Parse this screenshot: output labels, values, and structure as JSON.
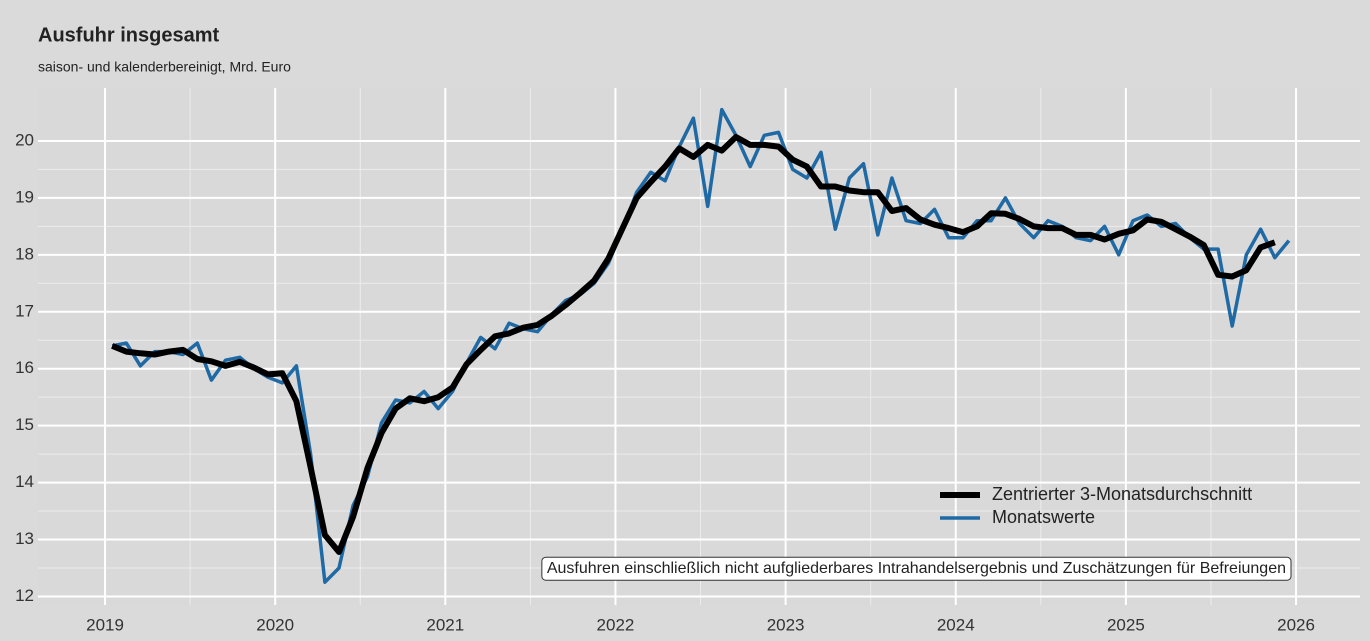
{
  "chart_data": {
    "type": "line",
    "title": "Ausfuhr insgesamt",
    "subtitle": "saison- und kalenderbereinigt, Mrd. Euro",
    "annotation": "Ausfuhren einschließlich nicht aufgliederbares Intrahandelsergebnis und Zuschätzungen für Befreiungen",
    "legend_position": "bottom-right",
    "grid": true,
    "xlim": [
      2018.606,
      2026.376
    ],
    "xticks": [
      2019,
      2020,
      2021,
      2022,
      2023,
      2024,
      2025,
      2026
    ],
    "ylim": [
      11.85,
      20.93
    ],
    "yticks": [
      12,
      13,
      14,
      15,
      16,
      17,
      18,
      19,
      20
    ],
    "x": [
      2019.042,
      2019.125,
      2019.208,
      2019.292,
      2019.375,
      2019.458,
      2019.542,
      2019.625,
      2019.708,
      2019.792,
      2019.875,
      2019.958,
      2020.042,
      2020.125,
      2020.208,
      2020.292,
      2020.375,
      2020.458,
      2020.542,
      2020.625,
      2020.708,
      2020.792,
      2020.875,
      2020.958,
      2021.042,
      2021.125,
      2021.208,
      2021.292,
      2021.375,
      2021.458,
      2021.542,
      2021.625,
      2021.708,
      2021.792,
      2021.875,
      2021.958,
      2022.042,
      2022.125,
      2022.208,
      2022.292,
      2022.375,
      2022.458,
      2022.542,
      2022.625,
      2022.708,
      2022.792,
      2022.875,
      2022.958,
      2023.042,
      2023.125,
      2023.208,
      2023.292,
      2023.375,
      2023.458,
      2023.542,
      2023.625,
      2023.708,
      2023.792,
      2023.875,
      2023.958,
      2024.042,
      2024.125,
      2024.208,
      2024.292,
      2024.375,
      2024.458,
      2024.542,
      2024.625,
      2024.708,
      2024.792,
      2024.875,
      2024.958,
      2025.042,
      2025.125,
      2025.208,
      2025.292,
      2025.375,
      2025.458,
      2025.542,
      2025.625,
      2025.708,
      2025.792,
      2025.875,
      2025.958
    ],
    "series": [
      {
        "name": "Monatswerte",
        "color": "#1f6aa5",
        "width": 3.5,
        "values": [
          16.4,
          16.45,
          16.05,
          16.3,
          16.3,
          16.25,
          16.45,
          15.8,
          16.15,
          16.2,
          16.0,
          15.85,
          15.75,
          16.05,
          14.5,
          12.25,
          12.5,
          13.6,
          14.1,
          15.05,
          15.45,
          15.4,
          15.6,
          15.3,
          15.6,
          16.1,
          16.55,
          16.35,
          16.8,
          16.7,
          16.65,
          16.95,
          17.2,
          17.3,
          17.5,
          17.85,
          18.45,
          19.1,
          19.45,
          19.3,
          19.9,
          20.4,
          18.85,
          20.55,
          20.1,
          19.55,
          20.1,
          20.15,
          19.5,
          19.35,
          19.8,
          18.45,
          19.35,
          19.6,
          18.35,
          19.35,
          18.6,
          18.55,
          18.8,
          18.3,
          18.3,
          18.6,
          18.6,
          19.0,
          18.55,
          18.3,
          18.6,
          18.5,
          18.3,
          18.25,
          18.5,
          18.0,
          18.6,
          18.7,
          18.5,
          18.55,
          18.3,
          18.1,
          18.1,
          16.75,
          18.0,
          18.45,
          17.95,
          18.25
        ]
      },
      {
        "name": "Zentrierter 3-Monatsdurchschnitt",
        "color": "#000000",
        "width": 6,
        "values": [
          16.4,
          16.3,
          16.27,
          16.25,
          16.3,
          16.33,
          16.17,
          16.13,
          16.05,
          16.12,
          16.02,
          15.9,
          15.92,
          15.43,
          14.27,
          13.08,
          12.78,
          13.4,
          14.25,
          14.87,
          15.3,
          15.48,
          15.43,
          15.5,
          15.67,
          16.08,
          16.33,
          16.57,
          16.62,
          16.72,
          16.77,
          16.93,
          17.12,
          17.33,
          17.55,
          17.93,
          18.47,
          19.0,
          19.28,
          19.55,
          19.87,
          19.72,
          19.93,
          19.83,
          20.07,
          19.93,
          19.93,
          19.9,
          19.67,
          19.55,
          19.2,
          19.2,
          19.13,
          19.1,
          19.1,
          18.77,
          18.82,
          18.62,
          18.53,
          18.47,
          18.4,
          18.5,
          18.73,
          18.72,
          18.63,
          18.5,
          18.47,
          18.47,
          18.35,
          18.35,
          18.27,
          18.37,
          18.43,
          18.62,
          18.58,
          18.45,
          18.32,
          18.17,
          17.65,
          17.62,
          17.73,
          18.13,
          18.22,
          null
        ]
      }
    ]
  }
}
